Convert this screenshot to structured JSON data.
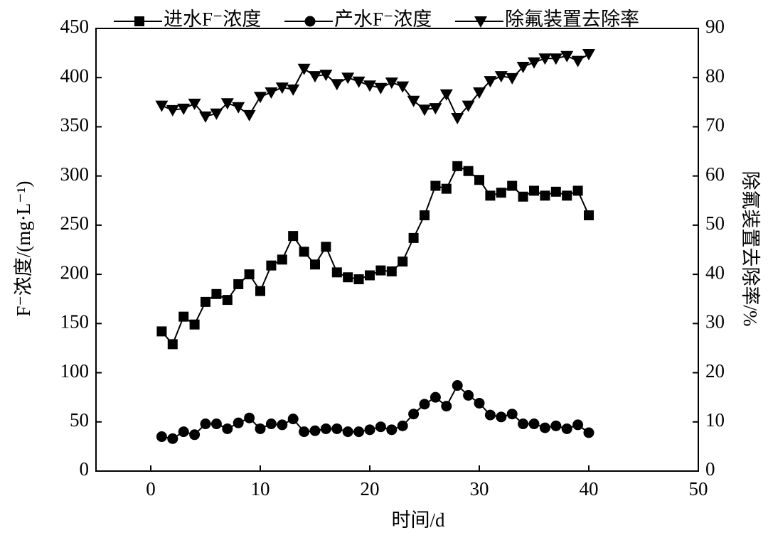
{
  "chart_data": {
    "type": "line",
    "x": [
      1,
      2,
      3,
      4,
      5,
      6,
      7,
      8,
      9,
      10,
      11,
      12,
      13,
      14,
      15,
      16,
      17,
      18,
      19,
      20,
      21,
      22,
      23,
      24,
      25,
      26,
      27,
      28,
      29,
      30,
      31,
      32,
      33,
      34,
      35,
      36,
      37,
      38,
      39,
      40
    ],
    "series": [
      {
        "name": "进水F⁻浓度",
        "color": "#000000",
        "marker": "square",
        "values": [
          142,
          129,
          157,
          149,
          172,
          180,
          174,
          190,
          200,
          183,
          209,
          215,
          239,
          223,
          210,
          228,
          202,
          197,
          195,
          199,
          204,
          203,
          213,
          237,
          260,
          290,
          287,
          310,
          305,
          296,
          280,
          283,
          290,
          279,
          285,
          280,
          284,
          280,
          285,
          260
        ]
      },
      {
        "name": "产水F⁻浓度",
        "color": "#000000",
        "marker": "circle",
        "values": [
          35,
          33,
          40,
          37,
          48,
          48,
          43,
          49,
          54,
          43,
          48,
          47,
          53,
          40,
          41,
          43,
          43,
          40,
          40,
          42,
          45,
          42,
          46,
          58,
          68,
          75,
          66,
          87,
          77,
          69,
          57,
          55,
          58,
          48,
          48,
          44,
          46,
          43,
          47,
          39
        ]
      },
      {
        "name": "除氟装置去除率",
        "color": "#000000",
        "marker": "triangle-down",
        "axis": "y2",
        "values": [
          74.3,
          73.4,
          73.7,
          74.7,
          72.1,
          72.7,
          74.8,
          74.0,
          72.4,
          76.1,
          77.0,
          78.0,
          77.6,
          81.8,
          80.3,
          80.6,
          78.7,
          80.0,
          79.2,
          78.4,
          77.9,
          79.0,
          78.2,
          75.3,
          73.5,
          73.8,
          76.6,
          71.8,
          74.3,
          77.0,
          79.3,
          80.3,
          79.9,
          82.2,
          83.1,
          83.9,
          83.9,
          84.4,
          83.4,
          84.8
        ]
      }
    ],
    "x_label": "时间/d",
    "y_label": "F⁻浓度/(mg·L⁻¹)",
    "y2_label": "除氟装置去除率/%",
    "xlim": [
      -5,
      50
    ],
    "xticks": [
      0,
      10,
      20,
      30,
      40,
      50
    ],
    "ylim": [
      0,
      450
    ],
    "yticks": [
      0,
      50,
      100,
      150,
      200,
      250,
      300,
      350,
      400,
      450
    ],
    "y2lim": [
      0,
      90
    ],
    "y2ticks": [
      0,
      10,
      20,
      30,
      40,
      50,
      60,
      70,
      80,
      90
    ],
    "legend": "top"
  }
}
